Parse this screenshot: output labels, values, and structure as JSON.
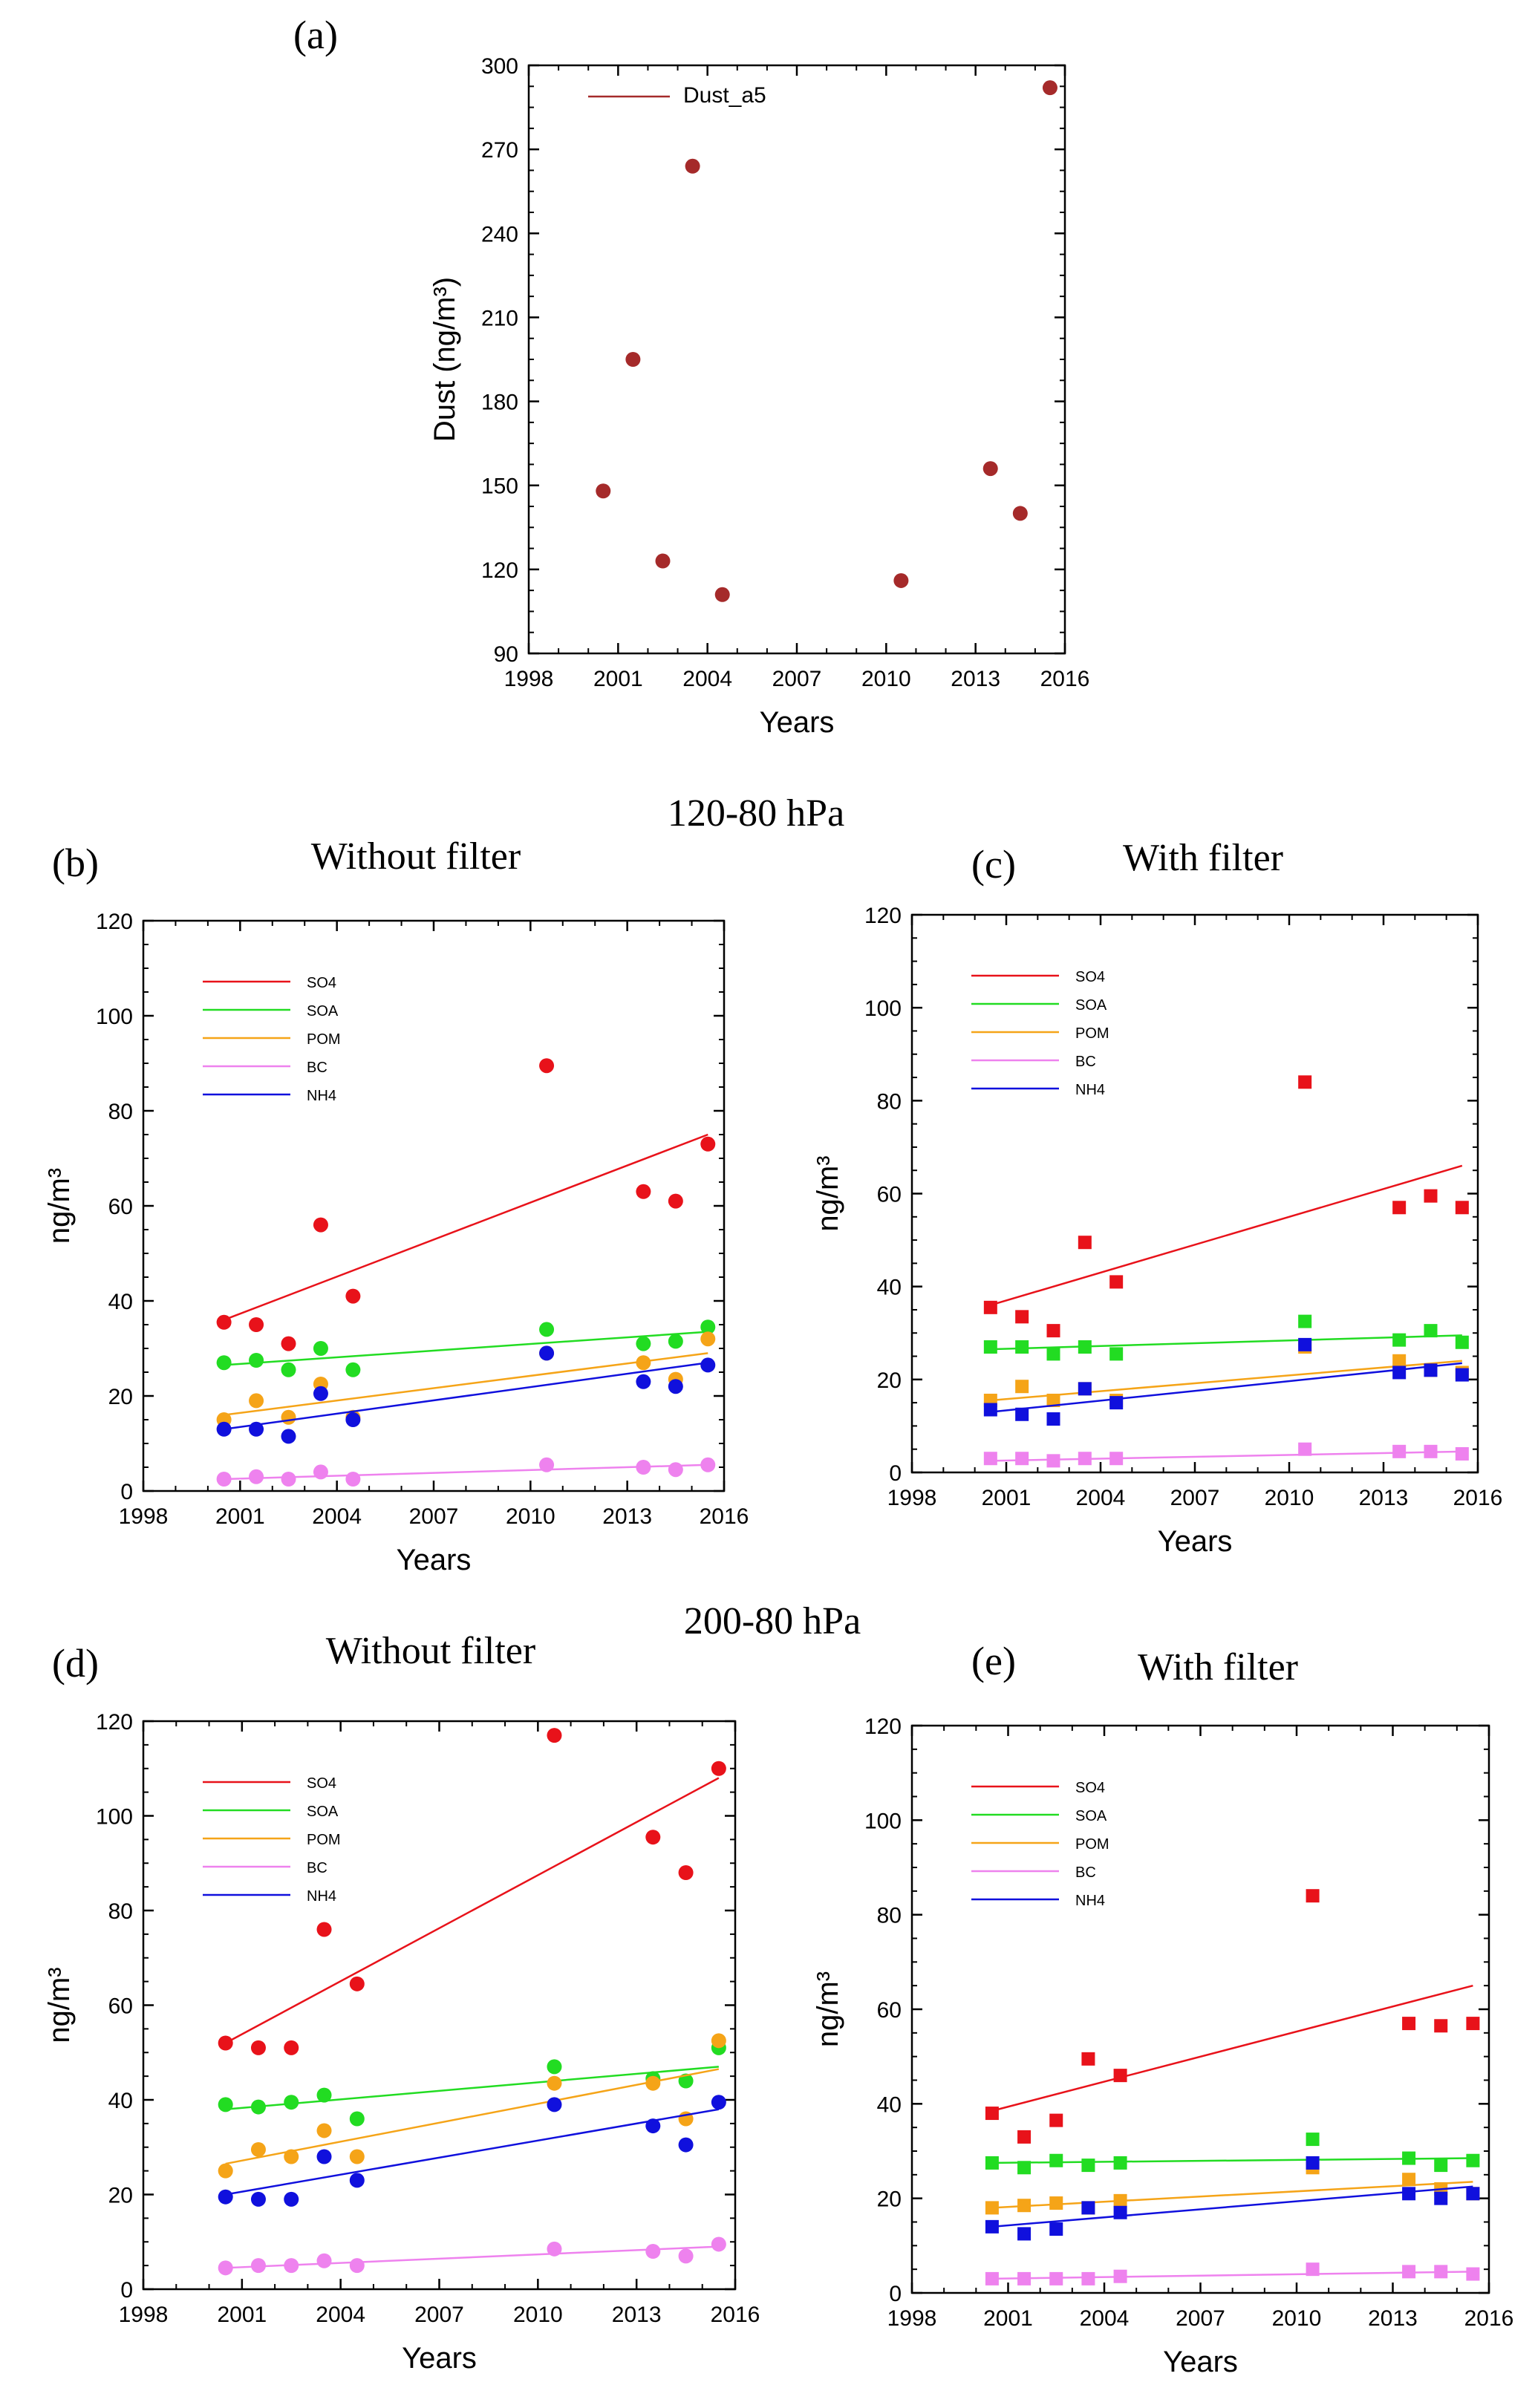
{
  "figure": {
    "section_b_c_title": "120-80 hPa",
    "section_d_e_title": "200-80 hPa"
  },
  "colors": {
    "SO4": "#e8121a",
    "SOA": "#22dc22",
    "POM": "#f5a418",
    "BC": "#ee82ee",
    "NH4": "#1010dd",
    "Dust_a5": "#a52a2a"
  },
  "chart_data": [
    {
      "id": "a",
      "panel_label": "(a)",
      "title": "",
      "type": "scatter",
      "marker": "circle",
      "xlabel": "Years",
      "ylabel": "Dust (ng/m³)",
      "xlim": [
        1998,
        2016
      ],
      "ylim": [
        90,
        300
      ],
      "xticks": [
        1998,
        2001,
        2004,
        2007,
        2010,
        2013,
        2016
      ],
      "yticks": [
        90,
        120,
        150,
        180,
        210,
        240,
        270,
        300
      ],
      "legend_position": "top-left",
      "trend_lines": false,
      "x": [
        2000.5,
        2001.5,
        2002.5,
        2003.5,
        2004.5,
        2010.5,
        2013.5,
        2014.5,
        2015.5
      ],
      "series": [
        {
          "name": "Dust_a5",
          "values": [
            148,
            195,
            123,
            264,
            111,
            116,
            156,
            140,
            292
          ]
        }
      ]
    },
    {
      "id": "b",
      "panel_label": "(b)",
      "title": "Without filter",
      "type": "scatter",
      "marker": "circle",
      "xlabel": "Years",
      "ylabel": "ng/m³",
      "xlim": [
        1998,
        2016
      ],
      "ylim": [
        0,
        120
      ],
      "xticks": [
        1998,
        2001,
        2004,
        2007,
        2010,
        2013,
        2016
      ],
      "yticks": [
        0,
        20,
        40,
        60,
        80,
        100,
        120
      ],
      "legend_position": "top-left",
      "trend_lines": true,
      "x": [
        2000.5,
        2001.5,
        2002.5,
        2003.5,
        2004.5,
        2010.5,
        2013.5,
        2014.5,
        2015.5
      ],
      "series": [
        {
          "name": "SO4",
          "values": [
            35.5,
            35,
            31,
            56,
            41,
            89.5,
            63,
            61,
            73
          ],
          "trend": [
            36,
            75
          ]
        },
        {
          "name": "SOA",
          "values": [
            27,
            27.5,
            25.5,
            30,
            25.5,
            34,
            31,
            31.5,
            34.5
          ],
          "trend": [
            26.5,
            33.5
          ]
        },
        {
          "name": "POM",
          "values": [
            15,
            19,
            15.5,
            22.5,
            15.5,
            29,
            27,
            23.5,
            32
          ],
          "trend": [
            16,
            29
          ]
        },
        {
          "name": "BC",
          "values": [
            2.5,
            3,
            2.5,
            4,
            2.5,
            5.5,
            5,
            4.5,
            5.5
          ],
          "trend": [
            2.5,
            5.5
          ]
        },
        {
          "name": "NH4",
          "values": [
            13,
            13,
            11.5,
            20.5,
            15,
            29,
            23,
            22,
            26.5
          ],
          "trend": [
            13,
            27
          ]
        }
      ]
    },
    {
      "id": "c",
      "panel_label": "(c)",
      "title": "With filter",
      "type": "scatter",
      "marker": "square",
      "xlabel": "Years",
      "ylabel": "ng/m³",
      "xlim": [
        1998,
        2016
      ],
      "ylim": [
        0,
        120
      ],
      "xticks": [
        1998,
        2001,
        2004,
        2007,
        2010,
        2013,
        2016
      ],
      "yticks": [
        0,
        20,
        40,
        60,
        80,
        100,
        120
      ],
      "legend_position": "top-left",
      "trend_lines": true,
      "x": [
        2000.5,
        2001.5,
        2002.5,
        2003.5,
        2004.5,
        2010.5,
        2013.5,
        2014.5,
        2015.5
      ],
      "series": [
        {
          "name": "SO4",
          "values": [
            35.5,
            33.5,
            30.5,
            49.5,
            41,
            84,
            57,
            59.5,
            57
          ],
          "trend": [
            36,
            66
          ]
        },
        {
          "name": "SOA",
          "values": [
            27,
            27,
            25.5,
            27,
            25.5,
            32.5,
            28.5,
            30.5,
            28
          ],
          "trend": [
            26.5,
            29.5
          ]
        },
        {
          "name": "POM",
          "values": [
            15.5,
            18.5,
            15.5,
            18,
            15.5,
            27,
            24,
            22,
            21.5
          ],
          "trend": [
            15.5,
            24
          ]
        },
        {
          "name": "BC",
          "values": [
            3,
            3,
            2.5,
            3,
            3,
            5,
            4.5,
            4.5,
            4
          ],
          "trend": [
            2.5,
            4.5
          ]
        },
        {
          "name": "NH4",
          "values": [
            13.5,
            12.5,
            11.5,
            18,
            15,
            27.5,
            21.5,
            22,
            21
          ],
          "trend": [
            13,
            23.5
          ]
        }
      ]
    },
    {
      "id": "d",
      "panel_label": "(d)",
      "title": "Without filter",
      "type": "scatter",
      "marker": "circle",
      "xlabel": "Years",
      "ylabel": "ng/m³",
      "xlim": [
        1998,
        2016
      ],
      "ylim": [
        0,
        120
      ],
      "xticks": [
        1998,
        2001,
        2004,
        2007,
        2010,
        2013,
        2016
      ],
      "yticks": [
        0,
        20,
        40,
        60,
        80,
        100,
        120
      ],
      "legend_position": "top-left",
      "trend_lines": true,
      "x": [
        2000.5,
        2001.5,
        2002.5,
        2003.5,
        2004.5,
        2010.5,
        2013.5,
        2014.5,
        2015.5
      ],
      "series": [
        {
          "name": "SO4",
          "values": [
            52,
            51,
            51,
            76,
            64.5,
            117,
            95.5,
            88,
            110
          ],
          "trend": [
            52,
            108
          ]
        },
        {
          "name": "SOA",
          "values": [
            39,
            38.5,
            39.5,
            41,
            36,
            47,
            44.5,
            44,
            51
          ],
          "trend": [
            38,
            47
          ]
        },
        {
          "name": "POM",
          "values": [
            25,
            29.5,
            28,
            33.5,
            28,
            43.5,
            43.5,
            36,
            52.5
          ],
          "trend": [
            26.5,
            46.5
          ]
        },
        {
          "name": "BC",
          "values": [
            4.5,
            5,
            5,
            6,
            5,
            8.5,
            8,
            7,
            9.5
          ],
          "trend": [
            4.5,
            9
          ]
        },
        {
          "name": "NH4",
          "values": [
            19.5,
            19,
            19,
            28,
            23,
            39,
            34.5,
            30.5,
            39.5
          ],
          "trend": [
            20,
            38
          ]
        }
      ]
    },
    {
      "id": "e",
      "panel_label": "(e)",
      "title": "With filter",
      "type": "scatter",
      "marker": "square",
      "xlabel": "Years",
      "ylabel": "ng/m³",
      "xlim": [
        1998,
        2016
      ],
      "ylim": [
        0,
        120
      ],
      "xticks": [
        1998,
        2001,
        2004,
        2007,
        2010,
        2013,
        2016
      ],
      "yticks": [
        0,
        20,
        40,
        60,
        80,
        100,
        120
      ],
      "legend_position": "top-left",
      "trend_lines": true,
      "x": [
        2000.5,
        2001.5,
        2002.5,
        2003.5,
        2004.5,
        2010.5,
        2013.5,
        2014.5,
        2015.5
      ],
      "series": [
        {
          "name": "SO4",
          "values": [
            38,
            33,
            36.5,
            49.5,
            46,
            84,
            57,
            56.5,
            57
          ],
          "trend": [
            38.5,
            65
          ]
        },
        {
          "name": "SOA",
          "values": [
            27.5,
            26.5,
            28,
            27,
            27.5,
            32.5,
            28.5,
            27,
            28
          ],
          "trend": [
            27.5,
            28.5
          ]
        },
        {
          "name": "POM",
          "values": [
            18,
            18.5,
            19,
            18,
            19.5,
            26.5,
            24,
            22,
            21
          ],
          "trend": [
            18,
            23.5
          ]
        },
        {
          "name": "BC",
          "values": [
            3,
            3,
            3,
            3,
            3.5,
            5,
            4.5,
            4.5,
            4
          ],
          "trend": [
            3,
            4.5
          ]
        },
        {
          "name": "NH4",
          "values": [
            14,
            12.5,
            13.5,
            18,
            17,
            27.5,
            21,
            20,
            21
          ],
          "trend": [
            14,
            22.5
          ]
        }
      ]
    }
  ]
}
